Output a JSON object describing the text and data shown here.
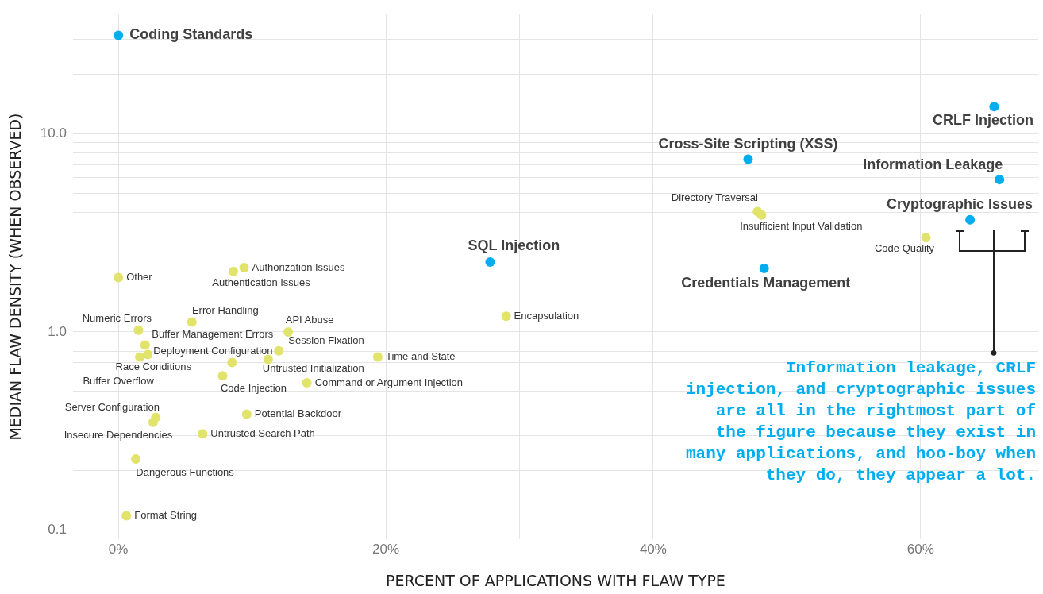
{
  "chart_data": {
    "type": "scatter",
    "xlabel": "PERCENT OF APPLICATIONS WITH FLAW TYPE",
    "ylabel": "MEDIAN FLAW DENSITY (WHEN OBSERVED)",
    "log": "y",
    "grid": true,
    "marker": "circle",
    "xlim": [
      -3.4,
      68.8
    ],
    "ylim": [
      0.09,
      40
    ],
    "xticks": [
      {
        "value": 0,
        "label": "0%"
      },
      {
        "value": 10,
        "label": null
      },
      {
        "value": 20,
        "label": "20%"
      },
      {
        "value": 30,
        "label": null
      },
      {
        "value": 40,
        "label": "40%"
      },
      {
        "value": 50,
        "label": null
      },
      {
        "value": 60,
        "label": "60%"
      }
    ],
    "yticks": [
      {
        "value": 0.1,
        "label": "0.1"
      },
      {
        "value": 0.2,
        "label": null
      },
      {
        "value": 0.3,
        "label": null
      },
      {
        "value": 0.4,
        "label": null
      },
      {
        "value": 0.5,
        "label": null
      },
      {
        "value": 0.6,
        "label": null
      },
      {
        "value": 0.7,
        "label": null
      },
      {
        "value": 0.8,
        "label": null
      },
      {
        "value": 0.9,
        "label": null
      },
      {
        "value": 1,
        "label": "1.0"
      },
      {
        "value": 2,
        "label": null
      },
      {
        "value": 3,
        "label": null
      },
      {
        "value": 4,
        "label": null
      },
      {
        "value": 5,
        "label": null
      },
      {
        "value": 6,
        "label": null
      },
      {
        "value": 7,
        "label": null
      },
      {
        "value": 8,
        "label": null
      },
      {
        "value": 9,
        "label": null
      },
      {
        "value": 10,
        "label": "10.0"
      },
      {
        "value": 20,
        "label": null
      },
      {
        "value": 30,
        "label": null
      }
    ],
    "series": [
      {
        "color": "#00aeef",
        "x": [
          0,
          65.5,
          47.1,
          65.9,
          63.7,
          27.8,
          48.3
        ],
        "values": [
          31.4,
          13.7,
          7.43,
          5.87,
          3.68,
          2.25,
          2.09
        ]
      },
      {
        "color": "#e2e36a",
        "x": [
          47.8,
          48.1,
          60.4,
          29.0,
          0,
          9.4,
          8.6,
          5.5,
          1.5,
          12.7,
          2.0,
          2.2,
          1.6,
          12.0,
          8.5,
          11.2,
          19.4,
          7.8,
          14.1,
          9.6,
          2.8,
          2.6,
          6.3,
          1.3,
          0.6
        ],
        "values": [
          4.04,
          3.89,
          2.99,
          1.2,
          1.88,
          2.11,
          2.02,
          1.12,
          1.02,
          1.0,
          0.857,
          0.768,
          0.747,
          0.803,
          0.701,
          0.727,
          0.747,
          0.6,
          0.553,
          0.384,
          0.37,
          0.35,
          0.306,
          0.228,
          0.118
        ]
      }
    ],
    "annotations": [
      {
        "text": "Coding Standards",
        "x": 0,
        "y": 31.4
      },
      {
        "text": "CRLF Injection",
        "x": 65.5,
        "y": 13.7
      },
      {
        "text": "Cross-Site Scripting (XSS)",
        "x": 47.1,
        "y": 7.43
      },
      {
        "text": "Information Leakage",
        "x": 65.9,
        "y": 5.87
      },
      {
        "text": "Cryptographic Issues",
        "x": 63.7,
        "y": 3.68
      },
      {
        "text": "SQL Injection",
        "x": 27.8,
        "y": 2.25
      },
      {
        "text": "Credentials Management",
        "x": 48.3,
        "y": 2.09
      },
      {
        "text": "Directory Traversal",
        "x": 47.8,
        "y": 4.04
      },
      {
        "text": "Insufficient Input Validation",
        "x": 48.1,
        "y": 3.89
      },
      {
        "text": "Code Quality",
        "x": 60.4,
        "y": 2.99
      },
      {
        "text": "Encapsulation",
        "x": 29.0,
        "y": 1.2
      },
      {
        "text": "Other",
        "x": 0,
        "y": 1.88
      },
      {
        "text": "Authorization Issues",
        "x": 9.4,
        "y": 2.11
      },
      {
        "text": "Authentication Issues",
        "x": 8.6,
        "y": 2.02
      },
      {
        "text": "Error Handling",
        "x": 5.5,
        "y": 1.12
      },
      {
        "text": "Numeric Errors",
        "x": 1.5,
        "y": 1.02
      },
      {
        "text": "API Abuse",
        "x": 12.7,
        "y": 1.0
      },
      {
        "text": "Buffer Management Errors",
        "x": 2.0,
        "y": 0.857
      },
      {
        "text": "Race Conditions",
        "x": 2.2,
        "y": 0.768
      },
      {
        "text": "Buffer Overflow",
        "x": 1.6,
        "y": 0.747
      },
      {
        "text": "Session Fixation",
        "x": 12.0,
        "y": 0.803
      },
      {
        "text": "Deployment Configuration",
        "x": 8.5,
        "y": 0.701
      },
      {
        "text": "Untrusted Initialization",
        "x": 11.2,
        "y": 0.727
      },
      {
        "text": "Time and State",
        "x": 19.4,
        "y": 0.747
      },
      {
        "text": "Code Injection",
        "x": 7.8,
        "y": 0.6
      },
      {
        "text": "Command or Argument Injection",
        "x": 14.1,
        "y": 0.553
      },
      {
        "text": "Potential Backdoor",
        "x": 9.6,
        "y": 0.384
      },
      {
        "text": "Server Configuration",
        "x": 2.8,
        "y": 0.37
      },
      {
        "text": "Insecure Dependencies",
        "x": 2.6,
        "y": 0.35
      },
      {
        "text": "Untrusted Search Path",
        "x": 6.3,
        "y": 0.306
      },
      {
        "text": "Dangerous Functions",
        "x": 1.3,
        "y": 0.228
      },
      {
        "text": "Format String",
        "x": 0.6,
        "y": 0.118
      },
      "Information leakage, CRLF injection, and cryptographic issues are all in the rightmost part of the figure because they exist in many applications, and hoo-boy when they do, they appear a lot."
    ]
  }
}
